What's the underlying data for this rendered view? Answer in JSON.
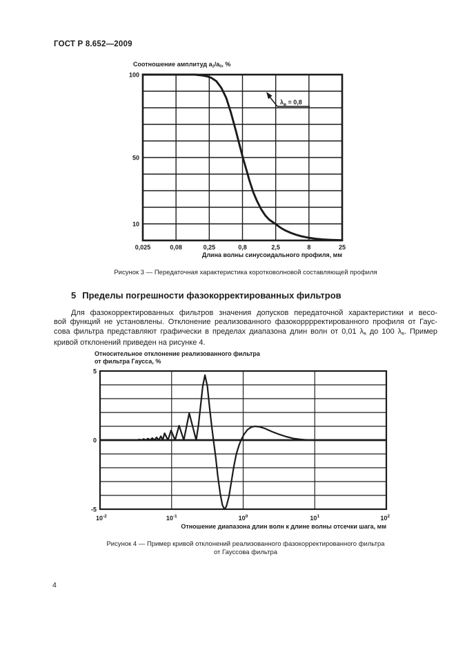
{
  "header": {
    "doc_code": "ГОСТ Р 8.652—2009"
  },
  "page_number": "4",
  "colors": {
    "ink": "#1b1b1b",
    "paper": "#ffffff"
  },
  "section5": {
    "heading_number": "5",
    "heading_text": "Пределы погрешности фазокорректированных фильтров",
    "para_line1": "Для фазокорректированных фильтров значения допусков передаточной характеристики и весо-",
    "para_line2": "вой функций не установлены. Отклонение реализованного фазокорррректированного профиля от Гаус-",
    "para_line3_segments": [
      {
        "t": "сова фильтра представляют графически в пределах диапазона длин волн от 0,01 λ"
      },
      {
        "sub": "в"
      },
      {
        "t": " до 100 λ"
      },
      {
        "sub": "в"
      },
      {
        "t": ". Пример"
      }
    ],
    "para_line4": "кривой отклонений приведен на рисунке 4."
  },
  "figure3": {
    "title_segments": [
      {
        "t": "Соотношение амплитуд a"
      },
      {
        "sub": "2"
      },
      {
        "t": "/a"
      },
      {
        "sub": "0"
      },
      {
        "t": ", %"
      }
    ],
    "caption": "Рисунок 3 — Передаточная характеристика коротковолновой составляющей профиля"
  },
  "figure4": {
    "title_line1": "Относительное отклонение реализованного фильтра",
    "title_line2": "от фильтра Гаусса, %",
    "caption_line1": "Рисунок 4 — Пример кривой отклонений реализованного фазокорректированного фильтра",
    "caption_line2": "от Гауссова фильтра"
  },
  "chart_data": [
    {
      "type": "line",
      "title": "Соотношение амплитуд a2/a0, %",
      "xlabel": "Длина волны синусоидального профиля, мм",
      "x_scale": "log",
      "x_ticks": [
        "0,025",
        "0,08",
        "0,25",
        "0,8",
        "2,5",
        "8",
        "25"
      ],
      "x_tick_values": [
        0.025,
        0.08,
        0.25,
        0.8,
        2.5,
        8,
        25
      ],
      "ylim": [
        0,
        100
      ],
      "y_grid_step": 10,
      "y_tick_labels": [
        {
          "value": 100,
          "label": "100"
        },
        {
          "value": 50,
          "label": "50"
        },
        {
          "value": 10,
          "label": "10"
        }
      ],
      "grid": true,
      "annotation_segments": [
        {
          "t": "λ"
        },
        {
          "sub": "в"
        },
        {
          "t": " = 0,8"
        }
      ],
      "points": [
        [
          0.025,
          100
        ],
        [
          0.05,
          100
        ],
        [
          0.1,
          100
        ],
        [
          0.15,
          100
        ],
        [
          0.19,
          99.6
        ],
        [
          0.23,
          99
        ],
        [
          0.27,
          98
        ],
        [
          0.32,
          96
        ],
        [
          0.38,
          92
        ],
        [
          0.45,
          86
        ],
        [
          0.53,
          77
        ],
        [
          0.63,
          66
        ],
        [
          0.72,
          57
        ],
        [
          0.8,
          50
        ],
        [
          0.9,
          43
        ],
        [
          1.0,
          36.5
        ],
        [
          1.15,
          29
        ],
        [
          1.3,
          24
        ],
        [
          1.5,
          19
        ],
        [
          1.75,
          15
        ],
        [
          2.0,
          12.5
        ],
        [
          2.5,
          9.8
        ],
        [
          3.0,
          7.5
        ],
        [
          3.5,
          6
        ],
        [
          4.2,
          4.6
        ],
        [
          5.0,
          3.5
        ],
        [
          6.0,
          2.6
        ],
        [
          7.0,
          2.0
        ],
        [
          8.0,
          1.6
        ],
        [
          10,
          1.0
        ],
        [
          13,
          0.6
        ],
        [
          17,
          0.35
        ],
        [
          21,
          0.2
        ],
        [
          25,
          0.12
        ]
      ]
    },
    {
      "type": "line",
      "title": "Относительное отклонение реализованного фильтра от фильтра Гаусса, %",
      "xlabel": "Отношение диапазона длин волн к длине волны отсечки шага, мм",
      "x_scale": "log",
      "xlim_log10": [
        -2,
        2
      ],
      "x_ticks": [
        {
          "base": "10",
          "exp": "-2"
        },
        {
          "base": "10",
          "exp": "-1"
        },
        {
          "base": "10",
          "exp": "0"
        },
        {
          "base": "10",
          "exp": "1"
        },
        {
          "base": "10",
          "exp": "2"
        }
      ],
      "ylim": [
        -5,
        5
      ],
      "y_grid_step": 1,
      "y_tick_labels": [
        {
          "value": 5,
          "label": "5"
        },
        {
          "value": 0,
          "label": "0"
        },
        {
          "value": -5,
          "label": "-5"
        }
      ],
      "zero_line_bold": true,
      "grid": true,
      "points_log10x": [
        [
          -2,
          0
        ],
        [
          -1.48,
          0
        ],
        [
          -1.45,
          0.05
        ],
        [
          -1.42,
          0
        ],
        [
          -1.39,
          0.08
        ],
        [
          -1.36,
          0
        ],
        [
          -1.33,
          0.11
        ],
        [
          -1.3,
          0
        ],
        [
          -1.27,
          0.15
        ],
        [
          -1.24,
          0
        ],
        [
          -1.21,
          0.2
        ],
        [
          -1.18,
          0
        ],
        [
          -1.15,
          0.28
        ],
        [
          -1.125,
          0
        ],
        [
          -1.098,
          0.5
        ],
        [
          -1.052,
          0
        ],
        [
          -1.007,
          0.7
        ],
        [
          -0.951,
          0
        ],
        [
          -0.895,
          1.05
        ],
        [
          -0.83,
          0
        ],
        [
          -0.754,
          1.95
        ],
        [
          -0.656,
          0
        ],
        [
          -0.625,
          1.1
        ],
        [
          -0.595,
          2.5
        ],
        [
          -0.565,
          3.9
        ],
        [
          -0.534,
          4.7
        ],
        [
          -0.5,
          3.9
        ],
        [
          -0.47,
          2.4
        ],
        [
          -0.44,
          1.0
        ],
        [
          -0.415,
          0
        ],
        [
          -0.385,
          -1.2
        ],
        [
          -0.355,
          -2.6
        ],
        [
          -0.32,
          -3.9
        ],
        [
          -0.29,
          -4.7
        ],
        [
          -0.262,
          -5.0
        ],
        [
          -0.235,
          -4.8
        ],
        [
          -0.2,
          -4.1
        ],
        [
          -0.165,
          -3.0
        ],
        [
          -0.13,
          -1.9
        ],
        [
          -0.095,
          -1.0
        ],
        [
          -0.06,
          -0.4
        ],
        [
          -0.03,
          0
        ],
        [
          0.01,
          0.4
        ],
        [
          0.06,
          0.75
        ],
        [
          0.11,
          0.93
        ],
        [
          0.16,
          1.0
        ],
        [
          0.22,
          0.97
        ],
        [
          0.3,
          0.85
        ],
        [
          0.4,
          0.62
        ],
        [
          0.5,
          0.42
        ],
        [
          0.6,
          0.25
        ],
        [
          0.7,
          0.12
        ],
        [
          0.8,
          0.05
        ],
        [
          0.9,
          0.01
        ],
        [
          1.0,
          0
        ],
        [
          2.0,
          0
        ]
      ]
    }
  ]
}
